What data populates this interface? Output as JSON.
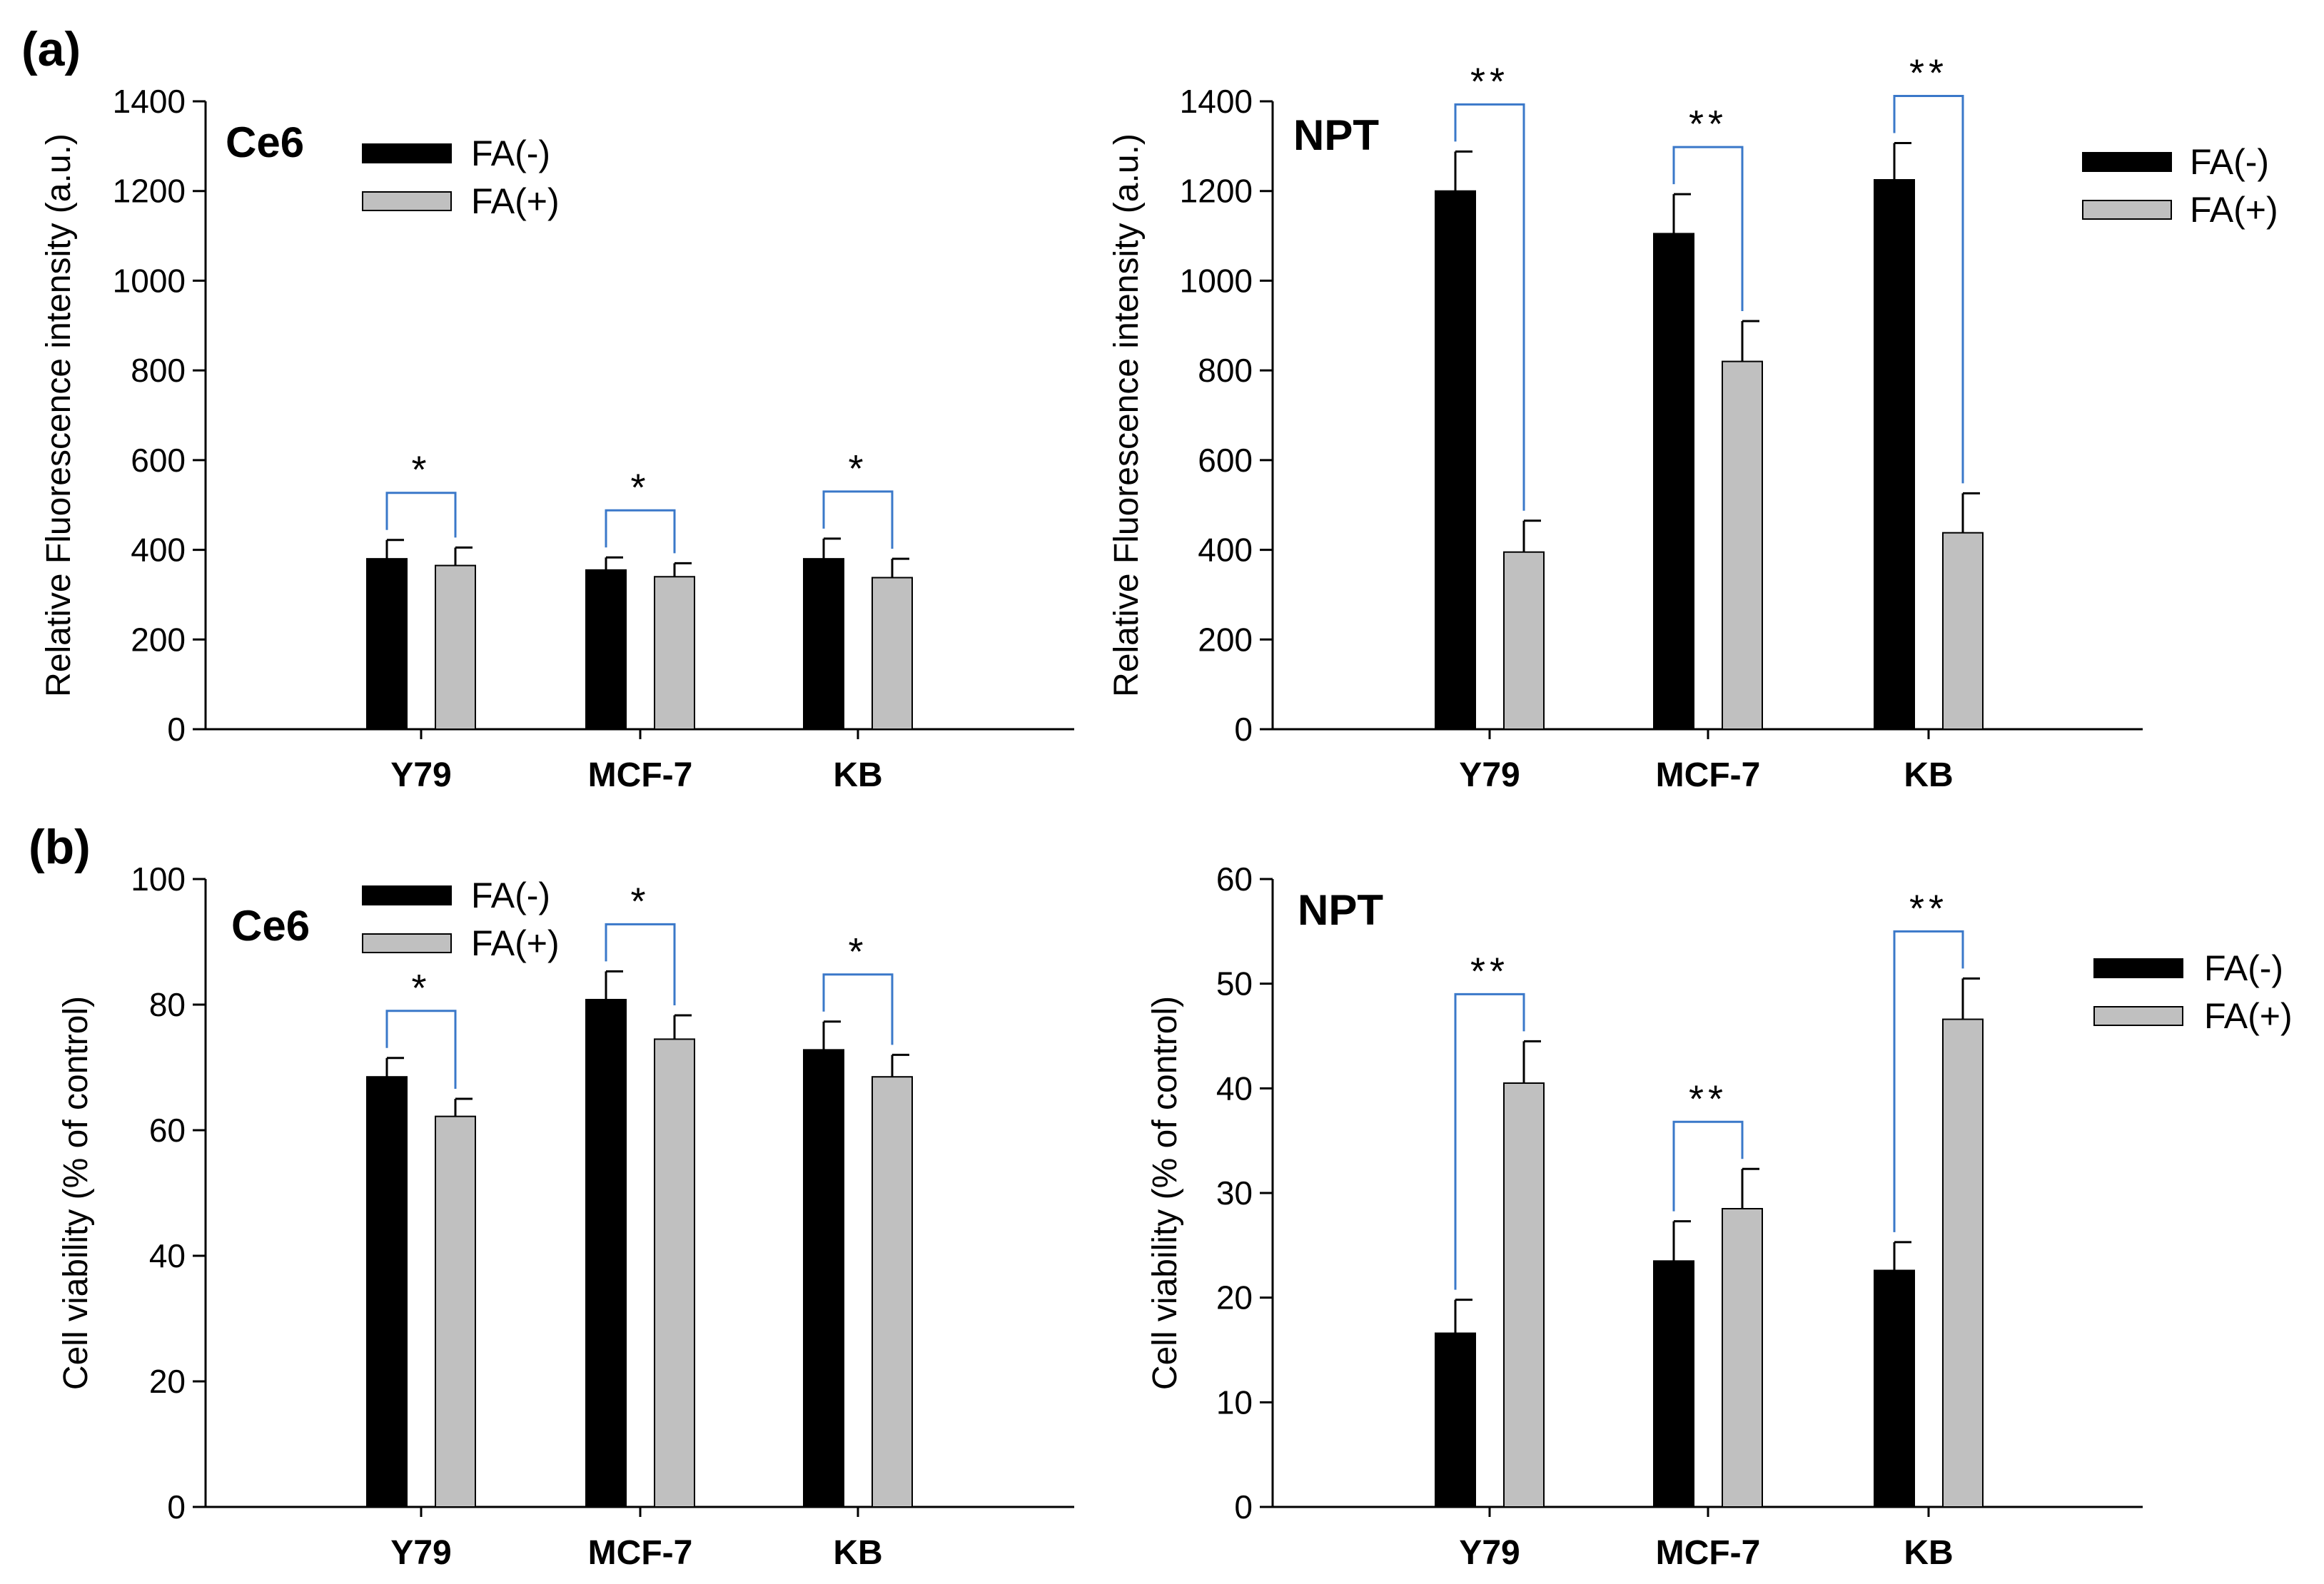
{
  "figure": {
    "panel_labels": [
      {
        "id": "a",
        "text": "(a)"
      },
      {
        "id": "b",
        "text": "(b)"
      }
    ]
  },
  "colors": {
    "fa_minus": "#000000",
    "fa_plus": "#c0c0c0",
    "bracket": "#3a78c9",
    "axis": "#000000"
  },
  "chart_data": [
    {
      "type": "bar",
      "panel": "a-left",
      "title": "Ce6",
      "categories": [
        "Y79",
        "MCF-7",
        "KB"
      ],
      "series": [
        {
          "name": "FA(-)",
          "values": [
            380,
            355,
            380
          ],
          "errors": [
            42,
            28,
            45
          ]
        },
        {
          "name": "FA(+)",
          "values": [
            365,
            340,
            338
          ],
          "errors": [
            40,
            30,
            42
          ]
        }
      ],
      "ylabel": "Relative Fluorescence intensity (a.u.)",
      "ylim": [
        0,
        1400
      ],
      "yticks": [
        0,
        200,
        400,
        600,
        800,
        1000,
        1200,
        1400
      ],
      "legend": "top-left",
      "significance": [
        {
          "category": "Y79",
          "label": "*"
        },
        {
          "category": "MCF-7",
          "label": "*"
        },
        {
          "category": "KB",
          "label": "*"
        }
      ]
    },
    {
      "type": "bar",
      "panel": "a-right",
      "title": "NPT",
      "categories": [
        "Y79",
        "MCF-7",
        "KB"
      ],
      "series": [
        {
          "name": "FA(-)",
          "values": [
            1200,
            1105,
            1225
          ],
          "errors": [
            88,
            88,
            82
          ]
        },
        {
          "name": "FA(+)",
          "values": [
            395,
            820,
            438
          ],
          "errors": [
            70,
            90,
            88
          ]
        }
      ],
      "ylabel": "Relative Fluorescence intensity (a.u.)",
      "ylim": [
        0,
        1400
      ],
      "yticks": [
        0,
        200,
        400,
        600,
        800,
        1000,
        1200,
        1400
      ],
      "legend": "top-right",
      "significance": [
        {
          "category": "Y79",
          "label": "**"
        },
        {
          "category": "MCF-7",
          "label": "**"
        },
        {
          "category": "KB",
          "label": "**"
        }
      ]
    },
    {
      "type": "bar",
      "panel": "b-left",
      "title": "Ce6",
      "categories": [
        "Y79",
        "MCF-7",
        "KB"
      ],
      "series": [
        {
          "name": "FA(-)",
          "values": [
            68.5,
            80.8,
            72.8
          ],
          "errors": [
            3.0,
            4.5,
            4.5
          ]
        },
        {
          "name": "FA(+)",
          "values": [
            62.2,
            74.5,
            68.5
          ],
          "errors": [
            2.8,
            3.8,
            3.5
          ]
        }
      ],
      "ylabel": "Cell viability (% of control)",
      "ylim": [
        0,
        100
      ],
      "yticks": [
        0,
        20,
        40,
        60,
        80,
        100
      ],
      "legend": "top-left",
      "significance": [
        {
          "category": "Y79",
          "label": "*"
        },
        {
          "category": "MCF-7",
          "label": "*"
        },
        {
          "category": "KB",
          "label": "*"
        }
      ]
    },
    {
      "type": "bar",
      "panel": "b-right",
      "title": "NPT",
      "categories": [
        "Y79",
        "MCF-7",
        "KB"
      ],
      "series": [
        {
          "name": "FA(-)",
          "values": [
            16.6,
            23.5,
            22.6
          ],
          "errors": [
            3.2,
            3.8,
            2.7
          ]
        },
        {
          "name": "FA(+)",
          "values": [
            40.5,
            28.5,
            46.6
          ],
          "errors": [
            4.0,
            3.8,
            3.9
          ]
        }
      ],
      "ylabel": "Cell viability (% of control)",
      "ylim": [
        0,
        60
      ],
      "yticks": [
        0,
        10,
        20,
        30,
        40,
        50,
        60
      ],
      "legend": "top-right",
      "significance": [
        {
          "category": "Y79",
          "label": "**"
        },
        {
          "category": "MCF-7",
          "label": "**"
        },
        {
          "category": "KB",
          "label": "**"
        }
      ]
    }
  ]
}
